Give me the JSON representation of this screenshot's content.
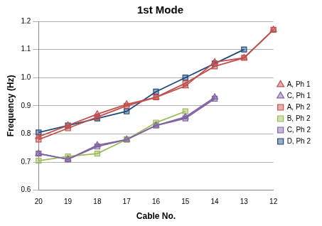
{
  "chart_data": {
    "type": "line",
    "title": "1st Mode",
    "x_label": "Cable No.",
    "y_label": "Frequency (Hz)",
    "categories": [
      "20",
      "19",
      "18",
      "17",
      "16",
      "15",
      "14",
      "13",
      "12"
    ],
    "series": [
      {
        "name": "A, Ph 1",
        "color": "#c0504d",
        "marker": "triangle",
        "values": [
          0.79,
          0.83,
          0.87,
          0.905,
          0.93,
          0.97,
          1.055,
          1.07,
          1.17
        ]
      },
      {
        "name": "C, Ph 1",
        "color": "#8064a2",
        "marker": "triangle",
        "values": [
          0.73,
          0.71,
          0.76,
          0.78,
          0.83,
          0.86,
          0.93,
          null,
          null
        ]
      },
      {
        "name": "A, Ph 2",
        "color": "#c0504d",
        "marker": "square",
        "values": [
          0.78,
          0.82,
          0.86,
          0.9,
          0.93,
          0.98,
          1.04,
          1.07,
          1.17
        ]
      },
      {
        "name": "B, Ph 2",
        "color": "#9bbb59",
        "marker": "square",
        "values": [
          0.705,
          0.72,
          0.73,
          0.78,
          0.84,
          0.88,
          null,
          null,
          null
        ]
      },
      {
        "name": "C, Ph 2",
        "color": "#8064a2",
        "marker": "square",
        "values": [
          0.73,
          0.71,
          0.755,
          0.78,
          0.83,
          0.855,
          0.925,
          null,
          null
        ]
      },
      {
        "name": "D, Ph 2",
        "color": "#1f497d",
        "marker": "square",
        "values": [
          0.805,
          0.83,
          0.855,
          0.88,
          0.95,
          1.0,
          1.05,
          1.1,
          null
        ]
      }
    ],
    "ylim": [
      0.6,
      1.2
    ],
    "yticks": [
      0.6,
      0.7,
      0.8,
      0.9,
      {
        "value": 1,
        "label": "1.0"
      },
      1.1,
      1.2
    ],
    "grid": true,
    "legend": "right"
  }
}
